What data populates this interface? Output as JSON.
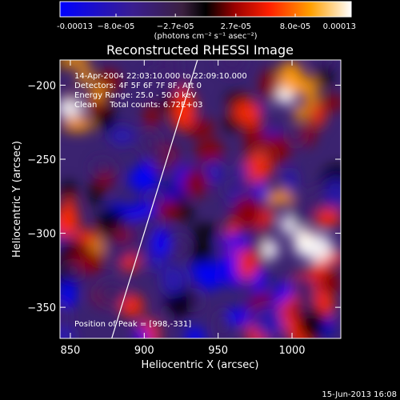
{
  "chart_data": {
    "type": "heatmap",
    "title": "Reconstructed RHESSI Image",
    "xlabel": "Heliocentric X (arcsec)",
    "ylabel": "Heliocentric Y (arcsec)",
    "xlim": [
      843,
      1033
    ],
    "ylim": [
      -371,
      -183
    ],
    "x_ticks": [
      850,
      900,
      950,
      1000
    ],
    "y_ticks": [
      -200,
      -250,
      -300,
      -350
    ],
    "colorbar": {
      "min": -0.00013,
      "max": 0.00013,
      "tick_values": [
        -0.00013,
        -8e-05,
        -2.7e-05,
        2.7e-05,
        8e-05,
        0.00013
      ],
      "tick_labels": [
        "-0.00013",
        "−8.0e-05",
        "−2.7e-05",
        "2.7e-05",
        "8.0e-05",
        "0.00013"
      ],
      "unit_label": "(photons cm⁻² s⁻¹ asec⁻²)",
      "colormap": [
        "#0000ff",
        "#2a1ab4",
        "#3d1f6e",
        "#000000",
        "#8c0000",
        "#ff2a00",
        "#ff9a00",
        "#ffffff"
      ]
    },
    "annotations": [
      "14-Apr-2004 22:03:10.000 to 22:09:10.000",
      "Detectors: 4F 5F 6F 7F 8F, Att 0",
      "Energy Range: 25.0 - 50.0 keV",
      "Clean     Total counts: 6.72E+03"
    ],
    "peak_label": "Position of Peak = [998,-331]",
    "limb_line": {
      "x": [
        878,
        936
      ],
      "y": [
        -371,
        -183
      ]
    },
    "footer": "15-Jun-2013 16:08"
  }
}
